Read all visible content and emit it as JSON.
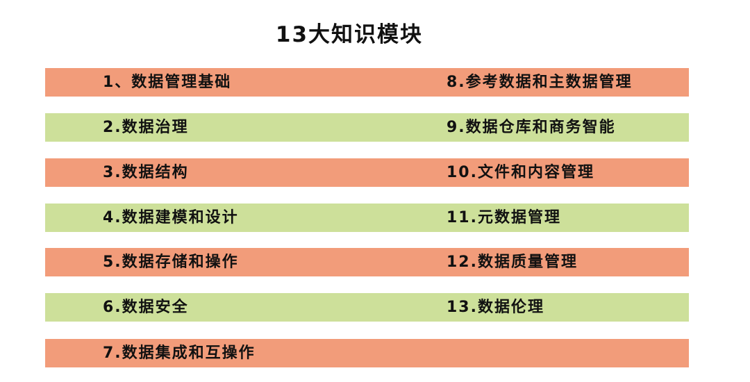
{
  "title": "13大知识模块",
  "colors": {
    "orange": "#F29C7A",
    "green": "#CDE09A"
  },
  "rows": [
    {
      "left": "1、数据管理基础",
      "right": "8.参考数据和主数据管理",
      "color": "orange"
    },
    {
      "left": "2.数据治理",
      "right": "9.数据仓库和商务智能",
      "color": "green"
    },
    {
      "left": "3.数据结构",
      "right": "10.文件和内容管理",
      "color": "orange"
    },
    {
      "left": "4.数据建模和设计",
      "right": "11.元数据管理",
      "color": "green"
    },
    {
      "left": "5.数据存储和操作",
      "right": "12.数据质量管理",
      "color": "orange"
    },
    {
      "left": "6.数据安全",
      "right": "13.数据伦理",
      "color": "green"
    },
    {
      "left": "7.数据集成和互操作",
      "right": "",
      "color": "orange"
    }
  ]
}
